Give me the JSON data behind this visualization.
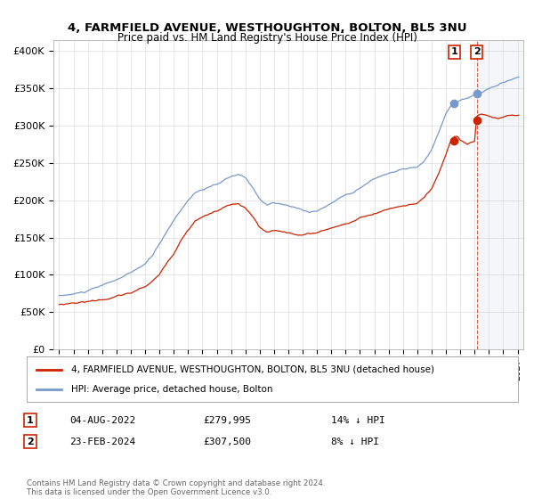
{
  "title1": "4, FARMFIELD AVENUE, WESTHOUGHTON, BOLTON, BL5 3NU",
  "title2": "Price paid vs. HM Land Registry's House Price Index (HPI)",
  "ylabel_ticks": [
    "£0",
    "£50K",
    "£100K",
    "£150K",
    "£200K",
    "£250K",
    "£300K",
    "£350K",
    "£400K"
  ],
  "ytick_vals": [
    0,
    50000,
    100000,
    150000,
    200000,
    250000,
    300000,
    350000,
    400000
  ],
  "ylim": [
    0,
    415000
  ],
  "legend_line1": "4, FARMFIELD AVENUE, WESTHOUGHTON, BOLTON, BL5 3NU (detached house)",
  "legend_line2": "HPI: Average price, detached house, Bolton",
  "annotation1_date": "04-AUG-2022",
  "annotation1_price": "£279,995",
  "annotation1_hpi": "14% ↓ HPI",
  "annotation2_date": "23-FEB-2024",
  "annotation2_price": "£307,500",
  "annotation2_hpi": "8% ↓ HPI",
  "footnote": "Contains HM Land Registry data © Crown copyright and database right 2024.\nThis data is licensed under the Open Government Licence v3.0.",
  "hpi_color": "#7799cc",
  "price_color": "#cc2200",
  "sale1_x": 2022.58,
  "sale1_y": 279995,
  "sale2_x": 2024.15,
  "sale2_y": 307500,
  "shade_from": 2024.15,
  "shade_to": 2027.0,
  "xlim_left": 1994.6,
  "xlim_right": 2027.4,
  "background_color": "#ffffff",
  "grid_color": "#dddddd"
}
